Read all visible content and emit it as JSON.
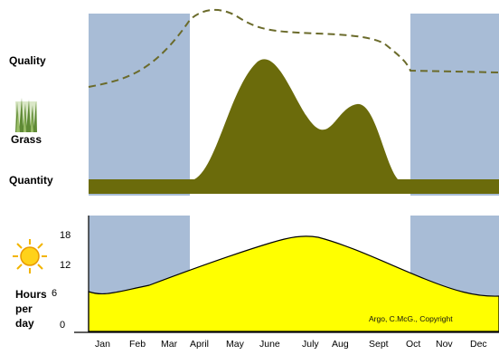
{
  "labels": {
    "quality": "Quality",
    "grass": "Grass",
    "quantity": "Quantity",
    "hours_per_day": [
      "Hours",
      "per",
      "day"
    ]
  },
  "y_ticks": [
    "18",
    "12",
    "6",
    "0"
  ],
  "months": [
    "Jan",
    "Feb",
    "Mar",
    "April",
    "May",
    "June",
    "July",
    "Aug",
    "Sept",
    "Oct",
    "Nov",
    "Dec"
  ],
  "copyright": "Argo, C.McG., Copyright",
  "colors": {
    "winter_shade": "#a8bcd6",
    "grass_fill": "#6b6b0b",
    "quality_line": "#6b6b2b",
    "daylight_fill": "#ffff00",
    "grass_icon": "#7a9a4a",
    "sun": "#ffd21a"
  },
  "icons": {
    "grass": "grass-icon",
    "sun": "sun-icon"
  }
}
